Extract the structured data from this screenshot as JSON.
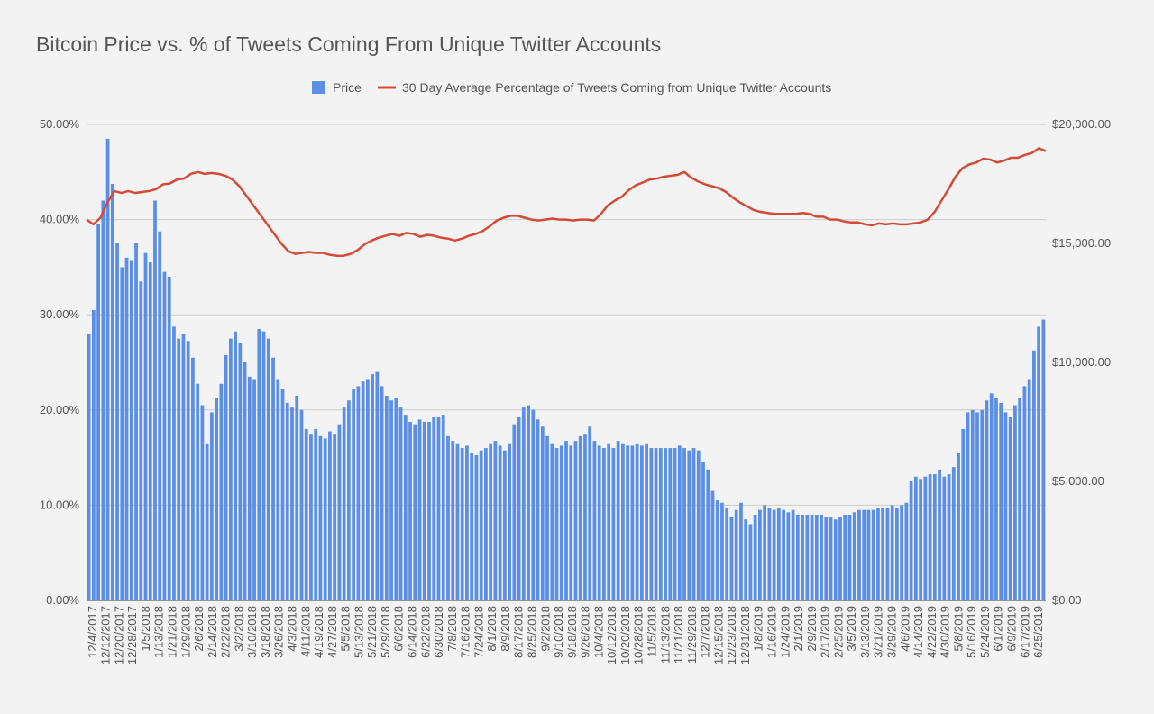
{
  "chart_data": {
    "type": "bar",
    "title": "Bitcoin Price vs. % of Tweets Coming From Unique Twitter Accounts",
    "xlabel": "",
    "ylabel": "",
    "y2label": "",
    "legend_position": "top",
    "grid": true,
    "colors": {
      "price": "#5b8fe6",
      "line": "#d44a36",
      "grid": "#cccccc",
      "axis": "#333333"
    },
    "x_tick_labels": [
      "12/4/2017",
      "12/12/2017",
      "12/20/2017",
      "12/28/2017",
      "1/5/2018",
      "1/13/2018",
      "1/21/2018",
      "1/29/2018",
      "2/6/2018",
      "2/14/2018",
      "2/22/2018",
      "3/2/2018",
      "3/10/2018",
      "3/18/2018",
      "3/26/2018",
      "4/3/2018",
      "4/11/2018",
      "4/19/2018",
      "4/27/2018",
      "5/5/2018",
      "5/13/2018",
      "5/21/2018",
      "5/29/2018",
      "6/6/2018",
      "6/14/2018",
      "6/22/2018",
      "6/30/2018",
      "7/8/2018",
      "7/16/2018",
      "7/24/2018",
      "8/1/2018",
      "8/9/2018",
      "8/17/2018",
      "8/25/2018",
      "9/2/2018",
      "9/10/2018",
      "9/18/2018",
      "9/26/2018",
      "10/4/2018",
      "10/12/2018",
      "10/20/2018",
      "10/28/2018",
      "11/5/2018",
      "11/13/2018",
      "11/21/2018",
      "11/29/2018",
      "12/7/2018",
      "12/15/2018",
      "12/23/2018",
      "12/31/2018",
      "1/8/2019",
      "1/16/2019",
      "1/24/2019",
      "2/1/2019",
      "2/9/2019",
      "2/17/2019",
      "2/25/2019",
      "3/5/2019",
      "3/13/2019",
      "3/21/2019",
      "3/29/2019",
      "4/6/2019",
      "4/14/2019",
      "4/22/2019",
      "4/30/2019",
      "5/8/2019",
      "5/16/2019",
      "5/24/2019",
      "6/1/2019",
      "6/9/2019",
      "6/17/2019",
      "6/25/2019"
    ],
    "y_left": {
      "ticks": [
        "0.00%",
        "10.00%",
        "20.00%",
        "30.00%",
        "40.00%",
        "50.00%"
      ],
      "min": 0,
      "max": 50
    },
    "y_right": {
      "ticks": [
        "$0.00",
        "$5,000.00",
        "$10,000.00",
        "$15,000.00",
        "$20,000.00"
      ],
      "min": 0,
      "max": 20000
    },
    "series": [
      {
        "name": "Price",
        "type": "bar",
        "axis": "right",
        "values": [
          11200,
          12200,
          15800,
          16800,
          19400,
          17500,
          15000,
          14000,
          14400,
          14300,
          15000,
          13400,
          14600,
          14200,
          16800,
          15500,
          13800,
          13600,
          11500,
          11000,
          11200,
          10900,
          10200,
          9100,
          8200,
          6600,
          7900,
          8500,
          9100,
          10300,
          11000,
          11300,
          10800,
          10000,
          9400,
          9300,
          11400,
          11300,
          11000,
          10200,
          9300,
          8900,
          8300,
          8100,
          8600,
          8000,
          7200,
          7000,
          7200,
          6900,
          6800,
          7100,
          7000,
          7400,
          8100,
          8400,
          8900,
          9000,
          9200,
          9300,
          9500,
          9600,
          9000,
          8600,
          8400,
          8500,
          8100,
          7800,
          7500,
          7400,
          7600,
          7500,
          7500,
          7700,
          7700,
          7800,
          6900,
          6700,
          6600,
          6400,
          6500,
          6200,
          6100,
          6300,
          6400,
          6600,
          6700,
          6500,
          6300,
          6600,
          7400,
          7700,
          8100,
          8200,
          8000,
          7600,
          7300,
          6900,
          6600,
          6400,
          6500,
          6700,
          6500,
          6700,
          6900,
          7000,
          7300,
          6700,
          6500,
          6400,
          6600,
          6400,
          6700,
          6600,
          6500,
          6500,
          6600,
          6500,
          6600,
          6400,
          6400,
          6400,
          6400,
          6400,
          6400,
          6500,
          6400,
          6300,
          6400,
          6300,
          5800,
          5500,
          4600,
          4200,
          4100,
          3900,
          3500,
          3800,
          4100,
          3400,
          3200,
          3600,
          3800,
          4000,
          3900,
          3800,
          3900,
          3800,
          3700,
          3800,
          3600,
          3600,
          3600,
          3600,
          3600,
          3600,
          3500,
          3500,
          3400,
          3500,
          3600,
          3600,
          3700,
          3800,
          3800,
          3800,
          3800,
          3900,
          3900,
          3900,
          4000,
          3900,
          4000,
          4100,
          5000,
          5200,
          5100,
          5200,
          5300,
          5300,
          5500,
          5200,
          5300,
          5600,
          6200,
          7200,
          7900,
          8000,
          7900,
          8000,
          8400,
          8700,
          8500,
          8300,
          7900,
          7700,
          8200,
          8500,
          9000,
          9300,
          10500,
          11500,
          11800
        ]
      },
      {
        "name": "30 Day Average Percentage of Tweets Coming from Unique Twitter Accounts",
        "type": "line",
        "axis": "left",
        "values": [
          40.0,
          39.5,
          40.2,
          41.8,
          43.0,
          42.8,
          43.0,
          42.8,
          42.9,
          43.0,
          43.2,
          43.7,
          43.8,
          44.2,
          44.3,
          44.8,
          45.0,
          44.8,
          44.9,
          44.8,
          44.6,
          44.2,
          43.5,
          42.5,
          41.5,
          40.5,
          39.5,
          38.5,
          37.5,
          36.7,
          36.4,
          36.5,
          36.6,
          36.5,
          36.5,
          36.3,
          36.2,
          36.2,
          36.4,
          36.8,
          37.4,
          37.8,
          38.1,
          38.3,
          38.5,
          38.3,
          38.6,
          38.5,
          38.2,
          38.4,
          38.3,
          38.1,
          38.0,
          37.8,
          38.0,
          38.3,
          38.5,
          38.8,
          39.3,
          39.9,
          40.2,
          40.4,
          40.4,
          40.2,
          40.0,
          39.9,
          40.0,
          40.1,
          40.0,
          40.0,
          39.9,
          40.0,
          40.0,
          39.9,
          40.6,
          41.5,
          42.0,
          42.4,
          43.1,
          43.6,
          43.9,
          44.2,
          44.3,
          44.5,
          44.6,
          44.7,
          45.0,
          44.4,
          44.0,
          43.7,
          43.5,
          43.3,
          42.9,
          42.3,
          41.8,
          41.4,
          41.0,
          40.8,
          40.7,
          40.6,
          40.6,
          40.6,
          40.6,
          40.7,
          40.6,
          40.3,
          40.3,
          40.0,
          40.0,
          39.8,
          39.7,
          39.7,
          39.5,
          39.4,
          39.6,
          39.5,
          39.6,
          39.5,
          39.5,
          39.6,
          39.7,
          40.0,
          40.8,
          42.0,
          43.2,
          44.5,
          45.4,
          45.8,
          46.0,
          46.4,
          46.3,
          46.0,
          46.2,
          46.5,
          46.5,
          46.8,
          47.0,
          47.5,
          47.2
        ]
      }
    ]
  }
}
